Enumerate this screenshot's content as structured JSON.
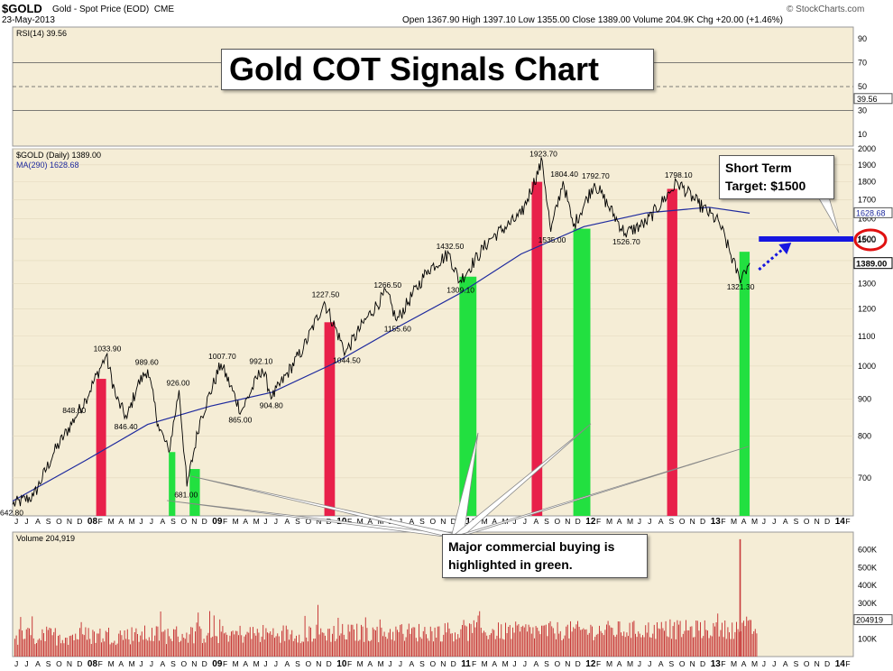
{
  "header": {
    "symbol": "$GOLD",
    "description": "Gold - Spot Price (EOD)",
    "exchange": "CME",
    "date": "23-May-2013",
    "ohlc": "Open 1367.90  High 1397.10  Low 1355.00  Close 1389.00  Volume 204.9K  Chg +20.00 (+1.46%)",
    "source": "© StockCharts.com"
  },
  "callouts": {
    "title": "Gold COT Signals Chart",
    "target_line1": "Short Term",
    "target_line2": "Target:  $1500",
    "commercial_line1": "Major commercial buying is",
    "commercial_line2": "highlighted in green."
  },
  "colors": {
    "background": "#F5EDD6",
    "price": "#000000",
    "ma": "#1E2A9E",
    "sell_bar": "#E8204A",
    "buy_bar": "#22E040",
    "target": "#1616E0",
    "circle": "#E01010",
    "volume_bar": "#C83A3A",
    "rsi": "#000000"
  },
  "chart_data": [
    {
      "type": "line",
      "panel": "rsi",
      "legend": "RSI(14) 39.56",
      "current_label": "39.56",
      "ylim": [
        0,
        100
      ],
      "y_ticks": [
        10,
        30,
        50,
        70,
        90
      ],
      "reference_lines": [
        30,
        50,
        70
      ],
      "current": 39.56
    },
    {
      "type": "line",
      "panel": "price",
      "legend_price": "$GOLD (Daily) 1389.00",
      "legend_ma": "MA(290) 1628.68",
      "ma_label": "1628.68",
      "close_label": "1389.00",
      "target_label": "1500",
      "y_scale": "log",
      "ylim": [
        620,
        2000
      ],
      "y_ticks": [
        700,
        800,
        900,
        1000,
        1100,
        1200,
        1300,
        1400,
        1500,
        1600,
        1700,
        1800,
        1900,
        2000
      ],
      "x_ticks": [
        "J",
        "J",
        "A",
        "S",
        "O",
        "N",
        "D",
        "08",
        "F",
        "M",
        "A",
        "M",
        "J",
        "J",
        "A",
        "S",
        "O",
        "N",
        "D",
        "09",
        "F",
        "M",
        "A",
        "M",
        "J",
        "J",
        "A",
        "S",
        "O",
        "N",
        "D",
        "10",
        "F",
        "M",
        "A",
        "M",
        "J",
        "J",
        "A",
        "S",
        "O",
        "N",
        "D",
        "11",
        "F",
        "M",
        "A",
        "M",
        "J",
        "J",
        "A",
        "S",
        "O",
        "N",
        "D",
        "12",
        "F",
        "M",
        "A",
        "M",
        "J",
        "J",
        "A",
        "S",
        "O",
        "N",
        "D",
        "13",
        "F",
        "M",
        "A",
        "M",
        "J",
        "J",
        "A",
        "S",
        "O",
        "N",
        "D",
        "14",
        "F"
      ],
      "price_series": [
        {
          "x": "2007-06",
          "y": 642.8
        },
        {
          "x": "2007-08",
          "y": 660
        },
        {
          "x": "2007-10",
          "y": 760
        },
        {
          "x": "2007-12",
          "y": 848
        },
        {
          "x": "2008-01",
          "y": 900
        },
        {
          "x": "2008-03",
          "y": 1033.9
        },
        {
          "x": "2008-04",
          "y": 900
        },
        {
          "x": "2008-05",
          "y": 846.4
        },
        {
          "x": "2008-06",
          "y": 940
        },
        {
          "x": "2008-07",
          "y": 989.6
        },
        {
          "x": "2008-08",
          "y": 830
        },
        {
          "x": "2008-09",
          "y": 760
        },
        {
          "x": "2008-10",
          "y": 926
        },
        {
          "x": "2008-10-24",
          "y": 681
        },
        {
          "x": "2008-12",
          "y": 840
        },
        {
          "x": "2009-02",
          "y": 1007.7
        },
        {
          "x": "2009-04",
          "y": 865
        },
        {
          "x": "2009-06",
          "y": 992.1
        },
        {
          "x": "2009-07",
          "y": 904.8
        },
        {
          "x": "2009-10",
          "y": 1060
        },
        {
          "x": "2009-12",
          "y": 1227.5
        },
        {
          "x": "2010-02",
          "y": 1044.5
        },
        {
          "x": "2010-04",
          "y": 1160
        },
        {
          "x": "2010-06",
          "y": 1266.5
        },
        {
          "x": "2010-07",
          "y": 1155.6
        },
        {
          "x": "2010-10",
          "y": 1360
        },
        {
          "x": "2010-12",
          "y": 1432.5
        },
        {
          "x": "2011-01",
          "y": 1309.1
        },
        {
          "x": "2011-04",
          "y": 1500
        },
        {
          "x": "2011-07",
          "y": 1620
        },
        {
          "x": "2011-09",
          "y": 1923.7
        },
        {
          "x": "2011-09-26",
          "y": 1535
        },
        {
          "x": "2011-11",
          "y": 1804.4
        },
        {
          "x": "2011-12",
          "y": 1560
        },
        {
          "x": "2012-02",
          "y": 1792.7
        },
        {
          "x": "2012-05",
          "y": 1526.7
        },
        {
          "x": "2012-07",
          "y": 1580
        },
        {
          "x": "2012-10",
          "y": 1798.1
        },
        {
          "x": "2012-12",
          "y": 1680
        },
        {
          "x": "2013-02",
          "y": 1580
        },
        {
          "x": "2013-04",
          "y": 1321.3
        },
        {
          "x": "2013-05",
          "y": 1389
        }
      ],
      "ma_series": [
        {
          "x": "2007-06",
          "y": 650
        },
        {
          "x": "2008-01",
          "y": 740
        },
        {
          "x": "2008-07",
          "y": 830
        },
        {
          "x": "2009-01",
          "y": 880
        },
        {
          "x": "2009-07",
          "y": 920
        },
        {
          "x": "2010-01",
          "y": 1010
        },
        {
          "x": "2010-07",
          "y": 1130
        },
        {
          "x": "2011-01",
          "y": 1260
        },
        {
          "x": "2011-07",
          "y": 1430
        },
        {
          "x": "2012-01",
          "y": 1560
        },
        {
          "x": "2012-07",
          "y": 1630
        },
        {
          "x": "2013-01",
          "y": 1660
        },
        {
          "x": "2013-05",
          "y": 1628.68
        }
      ],
      "annotations": [
        {
          "label": "642.80",
          "x": "2007-06",
          "y": 642.8
        },
        {
          "label": "848.00",
          "x": "2007-12",
          "y": 848
        },
        {
          "label": "1033.90",
          "x": "2008-03",
          "y": 1033.9
        },
        {
          "label": "846.40",
          "x": "2008-05",
          "y": 846.4
        },
        {
          "label": "989.60",
          "x": "2008-07",
          "y": 989.6
        },
        {
          "label": "926.00",
          "x": "2008-10",
          "y": 926
        },
        {
          "label": "681.00",
          "x": "2008-10-24",
          "y": 681
        },
        {
          "label": "1007.70",
          "x": "2009-02",
          "y": 1007.7
        },
        {
          "label": "865.00",
          "x": "2009-04",
          "y": 865
        },
        {
          "label": "992.10",
          "x": "2009-06",
          "y": 992.1
        },
        {
          "label": "904.80",
          "x": "2009-07",
          "y": 904.8
        },
        {
          "label": "1227.50",
          "x": "2009-12",
          "y": 1227.5
        },
        {
          "label": "1044.50",
          "x": "2010-02",
          "y": 1044.5
        },
        {
          "label": "1266.50",
          "x": "2010-06",
          "y": 1266.5
        },
        {
          "label": "1155.60",
          "x": "2010-07",
          "y": 1155.6
        },
        {
          "label": "1432.50",
          "x": "2010-12",
          "y": 1432.5
        },
        {
          "label": "1309.10",
          "x": "2011-01",
          "y": 1309.1
        },
        {
          "label": "1923.70",
          "x": "2011-09",
          "y": 1923.7
        },
        {
          "label": "1535.00",
          "x": "2011-09-26",
          "y": 1535
        },
        {
          "label": "1804.40",
          "x": "2011-11",
          "y": 1804.4
        },
        {
          "label": "1792.70",
          "x": "2012-02",
          "y": 1792.7
        },
        {
          "label": "1526.70",
          "x": "2012-05",
          "y": 1526.7
        },
        {
          "label": "1798.10",
          "x": "2012-10",
          "y": 1798.1
        },
        {
          "label": "1321.30",
          "x": "2013-04",
          "y": 1321.3
        }
      ],
      "signal_bars": [
        {
          "type": "sell",
          "start": "2008-02",
          "end": "2008-03",
          "top": 960
        },
        {
          "type": "buy",
          "start": "2008-09",
          "end": "2008-09-20",
          "top": 760
        },
        {
          "type": "buy",
          "start": "2008-11",
          "end": "2008-12",
          "top": 720
        },
        {
          "type": "sell",
          "start": "2009-12",
          "end": "2010-01",
          "top": 1150
        },
        {
          "type": "buy",
          "start": "2011-01",
          "end": "2011-02-20",
          "top": 1330
        },
        {
          "type": "sell",
          "start": "2011-08",
          "end": "2011-09",
          "top": 1800
        },
        {
          "type": "buy",
          "start": "2011-12",
          "end": "2012-01-20",
          "top": 1550
        },
        {
          "type": "sell",
          "start": "2012-09",
          "end": "2012-10",
          "top": 1760
        },
        {
          "type": "buy",
          "start": "2013-04",
          "end": "2013-05",
          "top": 1440
        }
      ],
      "target": 1500
    },
    {
      "type": "bar",
      "panel": "volume",
      "legend": "Volume 204,919",
      "current_label": "204919",
      "ylim": [
        0,
        700000
      ],
      "y_ticks": [
        100000,
        200000,
        300000,
        400000,
        500000,
        600000
      ],
      "y_tick_labels": [
        "100K",
        "200K",
        "300K",
        "400K",
        "500K",
        "600K"
      ],
      "current": 204919,
      "spike": {
        "x": "2013-04",
        "y": 660000
      }
    }
  ]
}
